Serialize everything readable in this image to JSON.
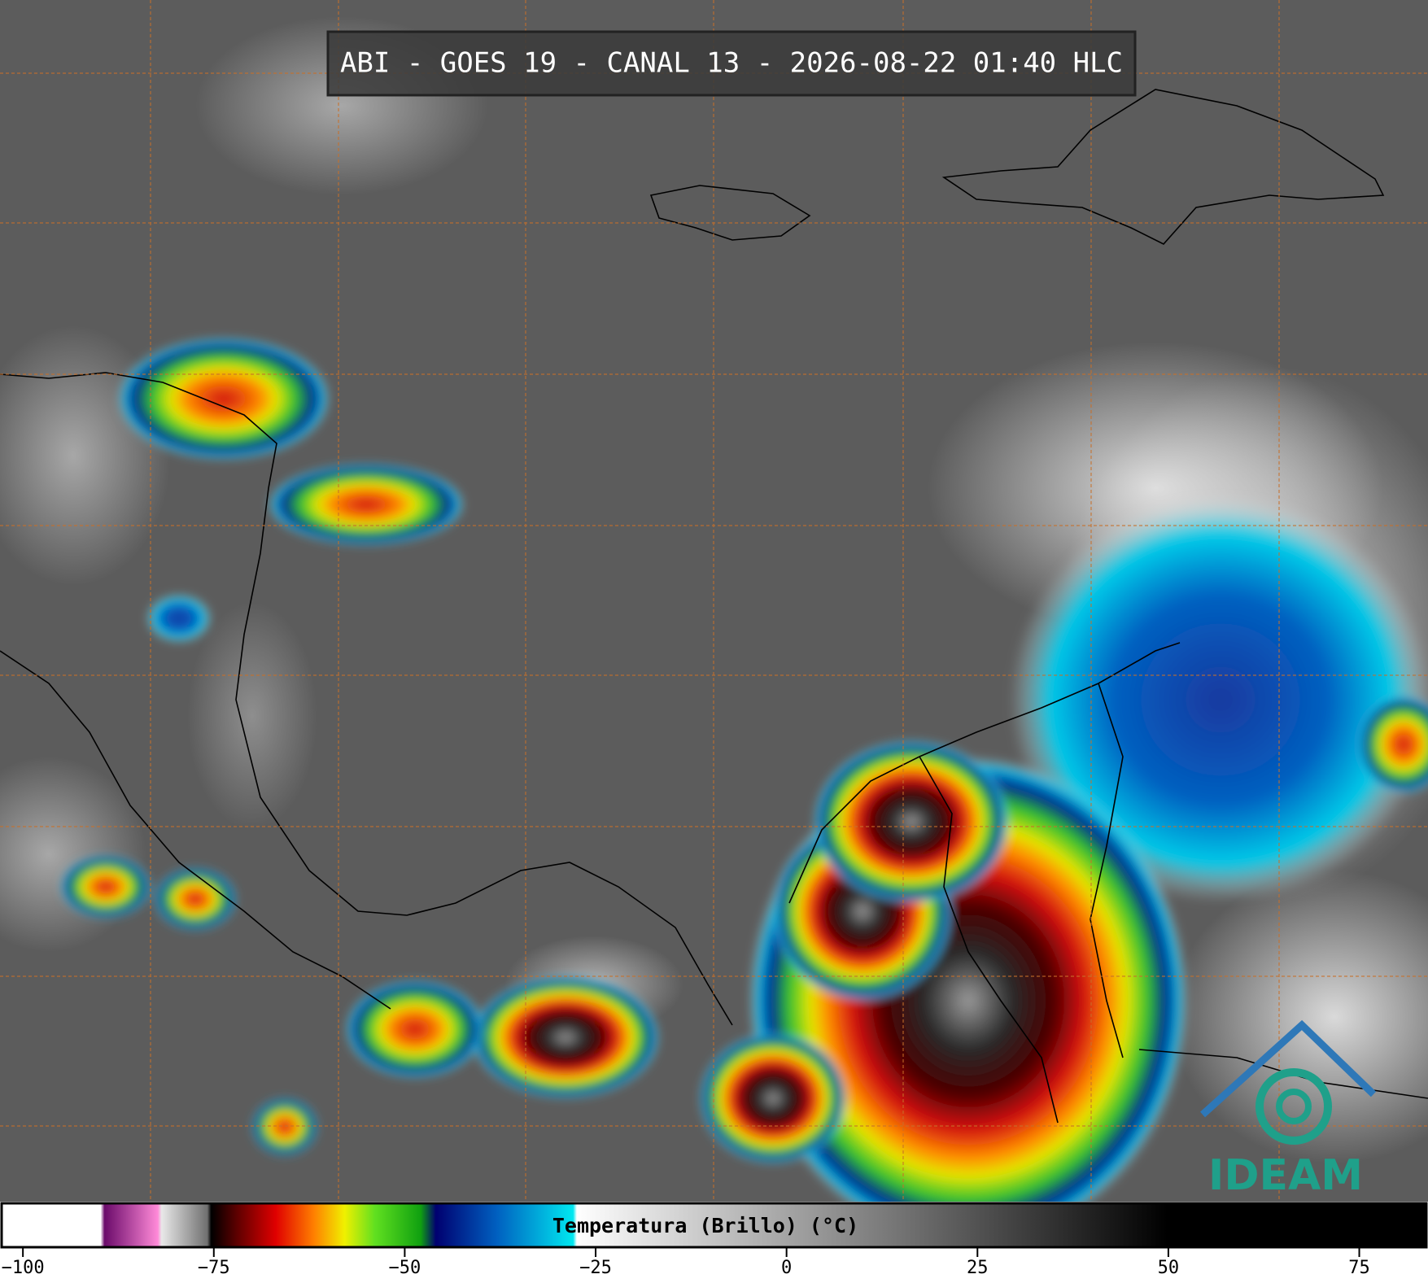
{
  "header": {
    "title": "ABI - GOES 19 - CANAL 13 - 2026-08-22 01:40 HLC"
  },
  "colorbar": {
    "label": "Temperatura (Brillo) (°C)",
    "lim": [
      -103,
      84
    ],
    "ticks": [
      {
        "value": -100,
        "label": "−100"
      },
      {
        "value": -75,
        "label": "−75"
      },
      {
        "value": -50,
        "label": "−50"
      },
      {
        "value": -25,
        "label": "−25"
      },
      0,
      25,
      50,
      75
    ],
    "stops": [
      {
        "value": -103,
        "color": "#ffffff"
      },
      {
        "value": -90,
        "color": "#ffffff"
      },
      {
        "value": -89.5,
        "color": "#6a0a6a"
      },
      {
        "value": -82.5,
        "color": "#ff8ad8"
      },
      {
        "value": -82,
        "color": "#e8e8e8"
      },
      {
        "value": -76,
        "color": "#707070"
      },
      {
        "value": -75.5,
        "color": "#000000"
      },
      {
        "value": -72,
        "color": "#600000"
      },
      {
        "value": -67,
        "color": "#e00000"
      },
      {
        "value": -62,
        "color": "#ff8000"
      },
      {
        "value": -58,
        "color": "#f0f000"
      },
      {
        "value": -54,
        "color": "#60e020"
      },
      {
        "value": -48,
        "color": "#10a010"
      },
      {
        "value": -46,
        "color": "#000070"
      },
      {
        "value": -38,
        "color": "#0060c0"
      },
      {
        "value": -28,
        "color": "#00e8f0"
      },
      {
        "value": -27.5,
        "color": "#ffffff"
      },
      {
        "value": 50,
        "color": "#000000"
      },
      {
        "value": 84,
        "color": "#000000"
      }
    ]
  },
  "logo": {
    "text": "IDEAM"
  }
}
